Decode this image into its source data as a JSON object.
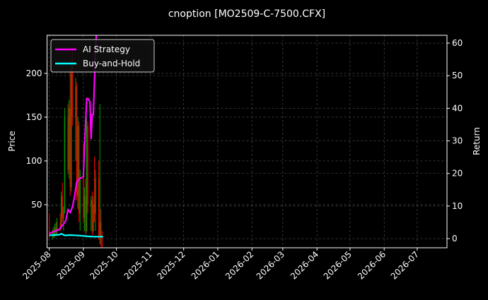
{
  "chart_data": {
    "type": "candlestick+line",
    "title": "cnoption [MO2509-C-7500.CFX]",
    "ylabel": "Price",
    "y2label": "Return",
    "xlim": [
      "2025-07-30",
      "2026-07-28"
    ],
    "ylim": [
      0.8,
      243.5
    ],
    "y2lim": [
      -2.8,
      62.4
    ],
    "grid": true,
    "legend_placement": "top-left",
    "xticks": [
      "2025-08",
      "2025-09",
      "2025-10",
      "2025-11",
      "2025-12",
      "2026-01",
      "2026-02",
      "2026-03",
      "2026-04",
      "2026-05",
      "2026-06",
      "2026-07"
    ],
    "yticks": [
      50,
      100,
      150,
      200
    ],
    "y2ticks": [
      0,
      10,
      20,
      30,
      40,
      50,
      60
    ],
    "colors": {
      "up": "#00a000",
      "down": "#ff0000",
      "ai": "#ff00ff",
      "bh": "#00ffff",
      "background": "#000000",
      "grid": "#555555"
    },
    "candles": [
      [
        "2025-08-01",
        20,
        40,
        12,
        15
      ],
      [
        "2025-08-04",
        15,
        22,
        10,
        18
      ],
      [
        "2025-08-05",
        18,
        25,
        12,
        14
      ],
      [
        "2025-08-06",
        14,
        28,
        12,
        24
      ],
      [
        "2025-08-07",
        24,
        30,
        15,
        18
      ],
      [
        "2025-08-08",
        18,
        35,
        14,
        30
      ],
      [
        "2025-08-11",
        30,
        40,
        20,
        25
      ],
      [
        "2025-08-12",
        25,
        65,
        22,
        60
      ],
      [
        "2025-08-13",
        60,
        75,
        30,
        35
      ],
      [
        "2025-08-14",
        35,
        48,
        20,
        42
      ],
      [
        "2025-08-15",
        42,
        160,
        40,
        150
      ],
      [
        "2025-08-18",
        150,
        165,
        85,
        90
      ],
      [
        "2025-08-19",
        90,
        170,
        80,
        160
      ],
      [
        "2025-08-20",
        160,
        205,
        60,
        70
      ],
      [
        "2025-08-21",
        70,
        215,
        65,
        200
      ],
      [
        "2025-08-22",
        200,
        230,
        140,
        150
      ],
      [
        "2025-08-25",
        150,
        195,
        100,
        185
      ],
      [
        "2025-08-26",
        185,
        190,
        55,
        60
      ],
      [
        "2025-08-27",
        60,
        150,
        45,
        140
      ],
      [
        "2025-08-28",
        140,
        145,
        30,
        40
      ],
      [
        "2025-08-29",
        40,
        90,
        20,
        80
      ],
      [
        "2025-09-01",
        80,
        120,
        30,
        35
      ],
      [
        "2025-09-02",
        35,
        70,
        20,
        60
      ],
      [
        "2025-09-03",
        60,
        80,
        15,
        20
      ],
      [
        "2025-09-04",
        20,
        150,
        18,
        140
      ],
      [
        "2025-09-05",
        140,
        145,
        40,
        50
      ],
      [
        "2025-09-08",
        50,
        60,
        20,
        55
      ],
      [
        "2025-09-09",
        55,
        65,
        15,
        20
      ],
      [
        "2025-09-10",
        20,
        60,
        18,
        50
      ],
      [
        "2025-09-11",
        50,
        105,
        30,
        40
      ],
      [
        "2025-09-12",
        40,
        90,
        20,
        80
      ],
      [
        "2025-09-15",
        80,
        100,
        10,
        15
      ],
      [
        "2025-09-16",
        15,
        165,
        5,
        30
      ],
      [
        "2025-09-17",
        30,
        45,
        2,
        5
      ],
      [
        "2025-09-18",
        5,
        20,
        1,
        3
      ]
    ],
    "series": [
      {
        "name": "AI Strategy",
        "dates": [
          "2025-08-01",
          "2025-08-05",
          "2025-08-10",
          "2025-08-14",
          "2025-08-16",
          "2025-08-18",
          "2025-08-20",
          "2025-08-22",
          "2025-08-24",
          "2025-08-26",
          "2025-08-29",
          "2025-09-01",
          "2025-09-02",
          "2025-09-04",
          "2025-09-05",
          "2025-09-07",
          "2025-09-08",
          "2025-09-09",
          "2025-09-10",
          "2025-09-12",
          "2025-09-14"
        ],
        "values": [
          1.5,
          2.2,
          2.8,
          4.5,
          5.5,
          8.9,
          8.0,
          9.7,
          13,
          17.5,
          18.5,
          19,
          28,
          43,
          43,
          42,
          30.5,
          38,
          38,
          58,
          70
        ]
      },
      {
        "name": "Buy-and-Hold",
        "dates": [
          "2025-08-01",
          "2025-08-05",
          "2025-08-10",
          "2025-08-12",
          "2025-08-15",
          "2025-08-20",
          "2025-08-25",
          "2025-08-30",
          "2025-09-05",
          "2025-09-10",
          "2025-09-15",
          "2025-09-19"
        ],
        "values": [
          1.0,
          1.1,
          1.2,
          1.5,
          1.0,
          1.1,
          1.0,
          0.9,
          0.7,
          0.6,
          0.6,
          0.6
        ]
      }
    ]
  }
}
